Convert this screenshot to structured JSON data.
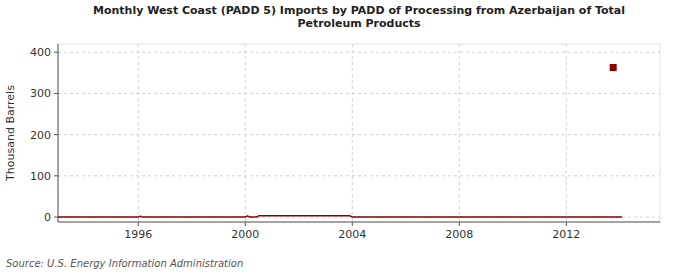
{
  "chart_data": {
    "type": "line",
    "title": "Monthly West Coast (PADD 5) Imports by PADD of Processing from Azerbaijan of Total\nPetroleum Products",
    "y_label": "Thousand Barrels",
    "annotations": [
      "Source: U.S. Energy Information Administration"
    ],
    "xlim": [
      1993.0,
      2015.5
    ],
    "ylim": [
      -12,
      420
    ],
    "xticks": [
      1996,
      2000,
      2004,
      2008,
      2012
    ],
    "yticks": [
      0,
      100,
      200,
      300,
      400
    ],
    "grid": true,
    "series": [
      {
        "type": "line",
        "color": "#8b0000",
        "x": [
          1993.0,
          1993.083,
          1993.167,
          1993.25,
          1993.333,
          1993.417,
          1993.5,
          1993.583,
          1993.667,
          1993.75,
          1993.833,
          1993.917,
          1994.0,
          1994.083,
          1994.167,
          1994.25,
          1994.333,
          1994.417,
          1994.5,
          1994.583,
          1994.667,
          1994.75,
          1994.833,
          1994.917,
          1995.0,
          1995.083,
          1995.167,
          1995.25,
          1995.333,
          1995.417,
          1995.5,
          1995.583,
          1995.667,
          1995.75,
          1995.833,
          1995.917,
          1996.0,
          1996.083,
          1996.167,
          1996.25,
          1996.333,
          1996.417,
          1996.5,
          1996.583,
          1996.667,
          1996.75,
          1996.833,
          1996.917,
          1997.0,
          1997.083,
          1997.167,
          1997.25,
          1997.333,
          1997.417,
          1997.5,
          1997.583,
          1997.667,
          1997.75,
          1997.833,
          1997.917,
          1998.0,
          1998.083,
          1998.167,
          1998.25,
          1998.333,
          1998.417,
          1998.5,
          1998.583,
          1998.667,
          1998.75,
          1998.833,
          1998.917,
          1999.0,
          1999.083,
          1999.167,
          1999.25,
          1999.333,
          1999.417,
          1999.5,
          1999.583,
          1999.667,
          1999.75,
          1999.833,
          1999.917,
          2000.0,
          2000.083,
          2000.167,
          2000.25,
          2000.333,
          2000.417,
          2000.5,
          2000.583,
          2000.667,
          2000.75,
          2000.833,
          2000.917,
          2001.0,
          2001.083,
          2001.167,
          2001.25,
          2001.333,
          2001.417,
          2001.5,
          2001.583,
          2001.667,
          2001.75,
          2001.833,
          2001.917,
          2002.0,
          2002.083,
          2002.167,
          2002.25,
          2002.333,
          2002.417,
          2002.5,
          2002.583,
          2002.667,
          2002.75,
          2002.833,
          2002.917,
          2003.0,
          2003.083,
          2003.167,
          2003.25,
          2003.333,
          2003.417,
          2003.5,
          2003.583,
          2003.667,
          2003.75,
          2003.833,
          2003.917,
          2004.0,
          2004.083,
          2004.167,
          2004.25,
          2004.333,
          2004.417,
          2004.5,
          2004.583,
          2004.667,
          2004.75,
          2004.833,
          2004.917,
          2005.0,
          2005.083,
          2005.167,
          2005.25,
          2005.333,
          2005.417,
          2005.5,
          2005.583,
          2005.667,
          2005.75,
          2005.833,
          2005.917,
          2006.0,
          2006.083,
          2006.167,
          2006.25,
          2006.333,
          2006.417,
          2006.5,
          2006.583,
          2006.667,
          2006.75,
          2006.833,
          2006.917,
          2007.0,
          2007.083,
          2007.167,
          2007.25,
          2007.333,
          2007.417,
          2007.5,
          2007.583,
          2007.667,
          2007.75,
          2007.833,
          2007.917,
          2008.0,
          2008.083,
          2008.167,
          2008.25,
          2008.333,
          2008.417,
          2008.5,
          2008.583,
          2008.667,
          2008.75,
          2008.833,
          2008.917,
          2009.0,
          2009.083,
          2009.167,
          2009.25,
          2009.333,
          2009.417,
          2009.5,
          2009.583,
          2009.667,
          2009.75,
          2009.833,
          2009.917,
          2010.0,
          2010.083,
          2010.167,
          2010.25,
          2010.333,
          2010.417,
          2010.5,
          2010.583,
          2010.667,
          2010.75,
          2010.833,
          2010.917,
          2011.0,
          2011.083,
          2011.167,
          2011.25,
          2011.333,
          2011.417,
          2011.5,
          2011.583,
          2011.667,
          2011.75,
          2011.833,
          2011.917,
          2012.0,
          2012.083,
          2012.167,
          2012.25,
          2012.333,
          2012.417,
          2012.5,
          2012.583,
          2012.667,
          2012.75,
          2012.833,
          2012.917,
          2013.0,
          2013.083,
          2013.167,
          2013.25,
          2013.333,
          2013.417,
          2013.5,
          2013.583,
          2013.667,
          2013.833,
          2013.917,
          2014.0,
          2014.083
        ],
        "values": [
          0,
          0,
          0,
          0,
          0,
          0,
          0,
          0,
          0,
          0,
          0,
          0,
          0,
          0,
          0,
          0,
          0,
          0,
          0,
          0,
          0,
          0,
          0,
          0,
          0,
          0,
          0,
          0,
          0,
          0,
          0,
          0,
          0,
          0,
          0,
          0,
          0,
          2,
          0,
          0,
          0,
          0,
          0,
          0,
          0,
          0,
          0,
          0,
          0,
          0,
          0,
          0,
          0,
          0,
          0,
          0,
          0,
          0,
          0,
          0,
          0,
          0,
          0,
          0,
          0,
          0,
          0,
          0,
          0,
          0,
          0,
          0,
          0,
          0,
          0,
          0,
          0,
          0,
          0,
          0,
          0,
          0,
          0,
          0,
          0,
          3,
          0,
          0,
          0,
          0,
          3,
          3,
          3,
          3,
          3,
          3,
          3,
          3,
          3,
          3,
          3,
          3,
          3,
          3,
          3,
          3,
          3,
          3,
          3,
          3,
          3,
          3,
          3,
          3,
          3,
          3,
          3,
          3,
          3,
          3,
          3,
          3,
          3,
          3,
          3,
          3,
          3,
          3,
          3,
          3,
          3,
          3,
          0,
          0,
          0,
          0,
          0,
          0,
          0,
          0,
          0,
          0,
          0,
          0,
          0,
          0,
          0,
          0,
          0,
          0,
          0,
          0,
          0,
          0,
          0,
          0,
          0,
          0,
          0,
          0,
          0,
          0,
          0,
          0,
          0,
          0,
          0,
          0,
          0,
          0,
          0,
          0,
          0,
          0,
          0,
          0,
          0,
          0,
          0,
          0,
          0,
          0,
          0,
          0,
          0,
          0,
          0,
          0,
          0,
          0,
          0,
          0,
          0,
          0,
          0,
          0,
          0,
          0,
          0,
          0,
          0,
          0,
          0,
          0,
          0,
          0,
          0,
          0,
          0,
          0,
          0,
          0,
          0,
          0,
          0,
          0,
          0,
          0,
          0,
          0,
          0,
          0,
          0,
          0,
          0,
          0,
          0,
          0,
          0,
          0,
          0,
          0,
          0,
          0,
          0,
          0,
          0,
          0,
          0,
          0,
          0,
          0,
          0,
          0,
          0,
          0,
          0,
          0,
          0,
          0,
          0,
          0,
          0
        ]
      },
      {
        "type": "scatter",
        "marker": "square",
        "color": "#8b0000",
        "x": [
          2013.75
        ],
        "values": [
          363
        ]
      }
    ]
  }
}
